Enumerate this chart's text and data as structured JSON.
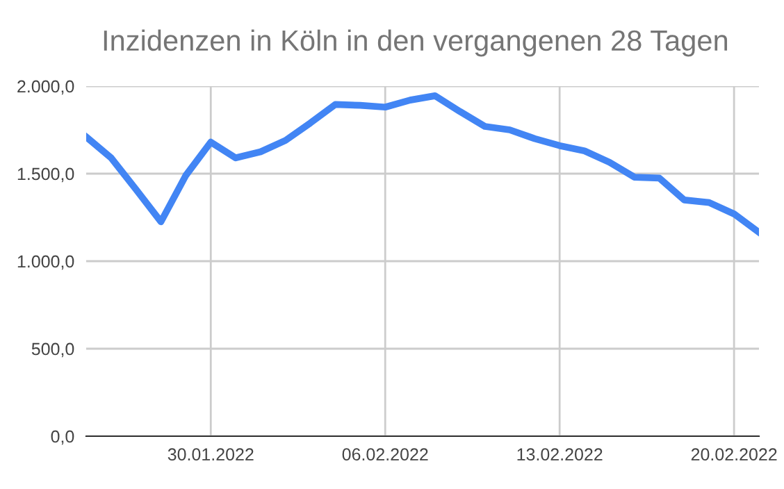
{
  "chart_data": {
    "type": "line",
    "title": "Inzidenzen in Köln in den vergangenen 28 Tagen",
    "x": [
      "2022-01-25",
      "2022-01-26",
      "2022-01-27",
      "2022-01-28",
      "2022-01-29",
      "2022-01-30",
      "2022-01-31",
      "2022-02-01",
      "2022-02-02",
      "2022-02-03",
      "2022-02-04",
      "2022-02-05",
      "2022-02-06",
      "2022-02-07",
      "2022-02-08",
      "2022-02-09",
      "2022-02-10",
      "2022-02-11",
      "2022-02-12",
      "2022-02-13",
      "2022-02-14",
      "2022-02-15",
      "2022-02-16",
      "2022-02-17",
      "2022-02-18",
      "2022-02-19",
      "2022-02-20",
      "2022-02-21"
    ],
    "series": [
      {
        "color": "#4285f4",
        "values": [
          1710,
          1590,
          1410,
          1225,
          1490,
          1680,
          1590,
          1625,
          1690,
          1790,
          1895,
          1890,
          1880,
          1920,
          1945,
          1855,
          1770,
          1750,
          1700,
          1660,
          1630,
          1565,
          1480,
          1475,
          1350,
          1335,
          1270,
          1165
        ]
      }
    ],
    "xlim": [
      "2022-01-25",
      "2022-02-21"
    ],
    "xticks": [
      {
        "value": "2022-01-30",
        "label": "30.01.2022"
      },
      {
        "value": "2022-02-06",
        "label": "06.02.2022"
      },
      {
        "value": "2022-02-13",
        "label": "13.02.2022"
      },
      {
        "value": "2022-02-20",
        "label": "20.02.2022"
      }
    ],
    "ylim": [
      0,
      2000
    ],
    "yticks": [
      {
        "value": 0,
        "label": "0,0"
      },
      {
        "value": 500,
        "label": "500,0"
      },
      {
        "value": 1000,
        "label": "1.000,0"
      },
      {
        "value": 1500,
        "label": "1.500,0"
      },
      {
        "value": 2000,
        "label": "2.000,0"
      }
    ],
    "grid": true,
    "marker": "none",
    "line_style": "solid"
  }
}
